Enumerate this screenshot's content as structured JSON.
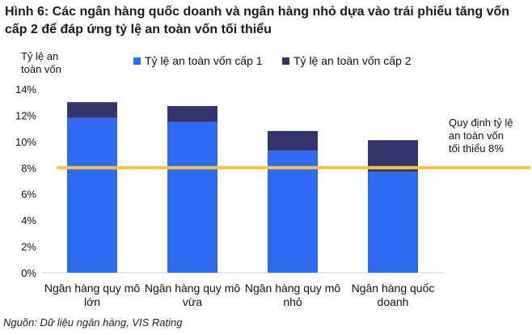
{
  "title": "Hình 6: Các ngân hàng quốc doanh và ngân hàng nhỏ dựa vào trái phiếu tăng vốn cấp 2 để đáp ứng tỷ lệ an toàn vốn tối thiểu",
  "source": "Nguồn: Dữ liệu ngân hàng, VIS Rating",
  "colors": {
    "tier1": "#2f6bf0",
    "tier2": "#33346b",
    "threshold": "#f6c244"
  },
  "chart_data": {
    "type": "bar",
    "stacked": true,
    "ylabel": [
      "Tỷ lệ an",
      "toàn vốn"
    ],
    "ylim": [
      0,
      14
    ],
    "yticks": [
      "0%",
      "2%",
      "4%",
      "6%",
      "8%",
      "10%",
      "12%",
      "14%"
    ],
    "grid": false,
    "legend_position": "top",
    "categories": [
      [
        "Ngân hàng quy mô",
        "lớn"
      ],
      [
        "Ngân hàng quy mô",
        "vừa"
      ],
      [
        "Ngân hàng quy mô",
        "nhỏ"
      ],
      [
        "Ngân hàng quốc",
        "doanh"
      ]
    ],
    "series": [
      {
        "name": "Tỷ lệ an toàn vốn cấp 1",
        "values": [
          11.8,
          11.5,
          9.3,
          7.7
        ]
      },
      {
        "name": "Tỷ lệ an toàn vốn cấp 2",
        "values": [
          1.2,
          1.2,
          1.5,
          2.4
        ]
      }
    ],
    "reference_line": {
      "value": 8,
      "label": [
        "Quy định tỷ lệ",
        "an toàn vốn",
        "tối thiểu 8%"
      ]
    }
  }
}
